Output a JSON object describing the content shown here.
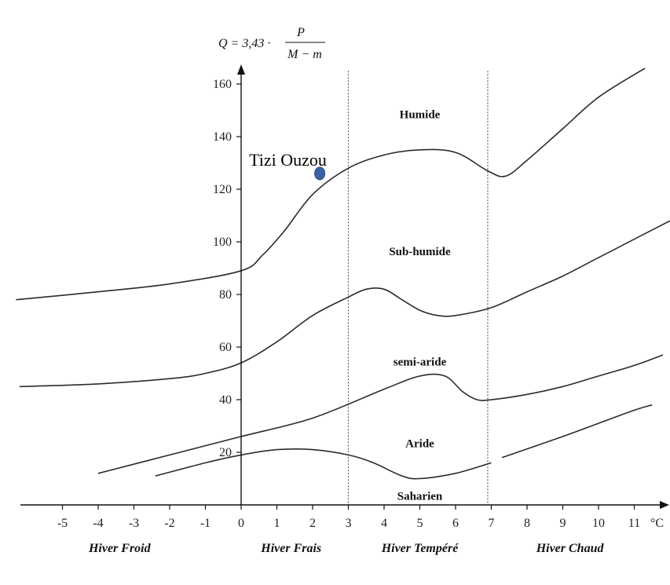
{
  "chart_data": {
    "type": "line",
    "title": "",
    "formula": {
      "lhs": "Q = 3,43 ·",
      "numerator": "P",
      "denominator": "M − m"
    },
    "x_unit": "°C",
    "x_ticks": [
      -5,
      -4,
      -3,
      -2,
      -1,
      0,
      1,
      2,
      3,
      4,
      5,
      6,
      7,
      8,
      9,
      10,
      11
    ],
    "y_ticks": [
      20,
      40,
      60,
      80,
      100,
      120,
      140,
      160
    ],
    "xlim": [
      -6.2,
      12
    ],
    "ylim": [
      0,
      170
    ],
    "grid": false,
    "vertical_lines": [
      3,
      6.9
    ],
    "series": [
      {
        "x": [
          -6.3,
          -4,
          -2,
          0,
          0.6,
          1.2,
          2,
          3,
          4,
          5,
          6,
          6.9,
          7.4,
          8,
          9,
          10,
          11.3
        ],
        "y": [
          78,
          81,
          84,
          89,
          95,
          104,
          118,
          128,
          133,
          135,
          134,
          127,
          125,
          131,
          143,
          155,
          166
        ]
      },
      {
        "x": [
          -6.2,
          -4,
          -2,
          -1,
          0,
          1,
          2,
          3,
          3.5,
          4,
          4.5,
          5,
          5.5,
          6,
          7,
          8,
          9,
          10,
          11,
          12
        ],
        "y": [
          45,
          46,
          48,
          50,
          54,
          62,
          72,
          79,
          82,
          82,
          78,
          74,
          72,
          72,
          75,
          81,
          87,
          94,
          101,
          108
        ]
      },
      {
        "x": [
          -4,
          -2,
          0,
          2,
          4,
          5,
          5.7,
          6.2,
          6.6,
          7,
          8,
          9,
          10,
          11,
          11.8
        ],
        "y": [
          12,
          19,
          26,
          33,
          44,
          49,
          49,
          43,
          40,
          40,
          42,
          45,
          49,
          53,
          57
        ]
      },
      {
        "x": [
          -2.4,
          -1,
          0,
          1,
          2,
          3,
          3.7,
          4.5,
          5,
          6,
          7
        ],
        "y": [
          11,
          16,
          19,
          21,
          21,
          19,
          16,
          11,
          10,
          12,
          16
        ]
      },
      {
        "x": [
          7.3,
          9,
          10,
          11,
          11.5
        ],
        "y": [
          18,
          26,
          31,
          36,
          38
        ]
      }
    ],
    "zones": [
      {
        "label": "Humide",
        "x": 5,
        "y": 147
      },
      {
        "label": "Sub-humide",
        "x": 5,
        "y": 95
      },
      {
        "label": "semi-aride",
        "x": 5,
        "y": 53
      },
      {
        "label": "Aride",
        "x": 5,
        "y": 22
      },
      {
        "label": "Saharien",
        "x": 5,
        "y": 2
      }
    ],
    "seasons": [
      {
        "label": "Hiver Froid",
        "x": -3.4
      },
      {
        "label": "Hiver Frais",
        "x": 1.4
      },
      {
        "label": "Hiver Tempéré",
        "x": 5
      },
      {
        "label": "Hiver Chaud",
        "x": 9.2
      }
    ],
    "station": {
      "label": "Tizi Ouzou",
      "x": 2.2,
      "y": 126,
      "color": "#3b63a8"
    }
  }
}
